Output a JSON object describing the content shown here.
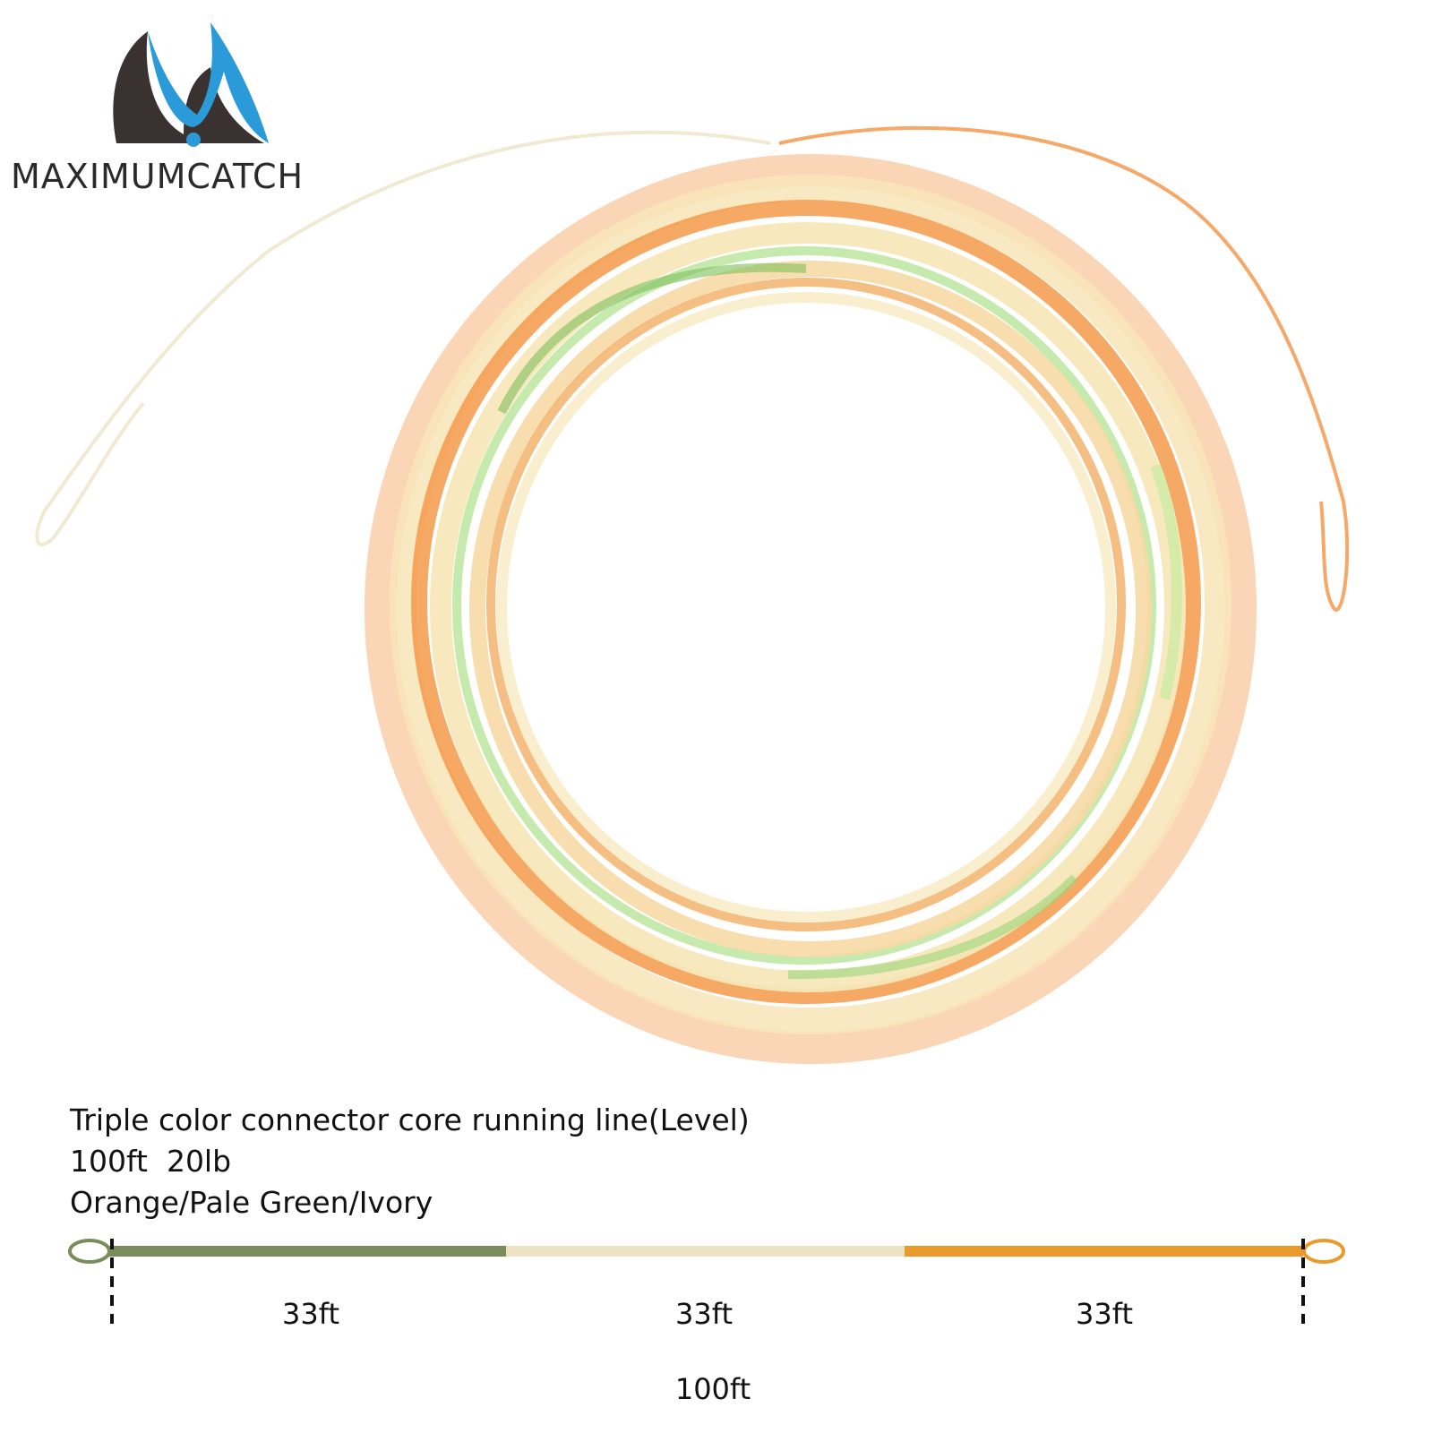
{
  "brand": {
    "name": "MAXIMUMCATCH",
    "logo_colors": {
      "dark": "#3a3230",
      "blue": "#2a9ad8"
    }
  },
  "product": {
    "title": "Triple color connector core running line(Level)",
    "spec": "100ft  20lb",
    "colors_text": "Orange/Pale Green/Ivory"
  },
  "line_diagram": {
    "segments": [
      {
        "label": "33ft",
        "color": "#7a8c5a"
      },
      {
        "label": "33ft",
        "color": "#eee2c4"
      },
      {
        "label": "33ft",
        "color": "#e99a2a"
      }
    ],
    "total_label": "100ft",
    "loop_left_color": "#7a8c5a",
    "loop_right_color": "#e99a2a"
  },
  "photo_colors": {
    "orange": "#f59a4a",
    "green": "#b8e59a",
    "ivory": "#f7e7b9"
  }
}
